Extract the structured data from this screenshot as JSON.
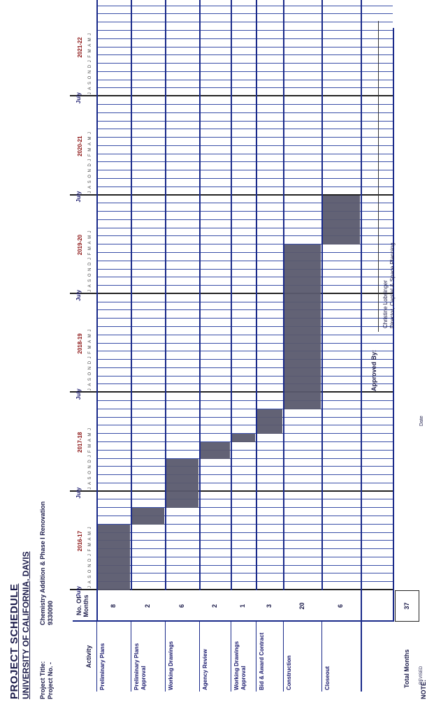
{
  "header": {
    "title": "PROJECT SCHEDULE",
    "subtitle": "UNIVERSITY OF CALIFORNIA, DAVIS",
    "project_title_label": "Project Title:",
    "project_title_value": "Chemistry Addition & Phase I Renovation",
    "project_no_label": "Project No. -",
    "project_no_value": "9330090"
  },
  "table": {
    "activity_header": "Activity",
    "months_header": "No. Of Months",
    "total_label": "Total Months",
    "total_value": "37"
  },
  "activities": [
    {
      "name": "Preliminary Plans",
      "months": "8"
    },
    {
      "name": "Preliminary Plans Approval",
      "months": "2"
    },
    {
      "name": "Working Drawings",
      "months": "6"
    },
    {
      "name": "Agency Review",
      "months": "2"
    },
    {
      "name": "Working Drawings Approval",
      "months": "1"
    },
    {
      "name": "Bid & Award Contract",
      "months": "3"
    },
    {
      "name": "Construction",
      "months": "20"
    },
    {
      "name": "Closeout",
      "months": "6"
    }
  ],
  "timeline": {
    "fiscal_years": [
      "2016-17",
      "2017-18",
      "2018-19",
      "2019-20",
      "2020-21",
      "2021-22"
    ],
    "july_label": "July",
    "month_letters": "JASONDJFMAMJ"
  },
  "footer": {
    "approved_by_label": "Approved By:",
    "approver_name": "Christine Lobsinger",
    "approver_title": "Director, Capital & Space Planning",
    "date_label": "Date",
    "note_label": "NOTE:",
    "revised_label": "REVISED"
  }
}
